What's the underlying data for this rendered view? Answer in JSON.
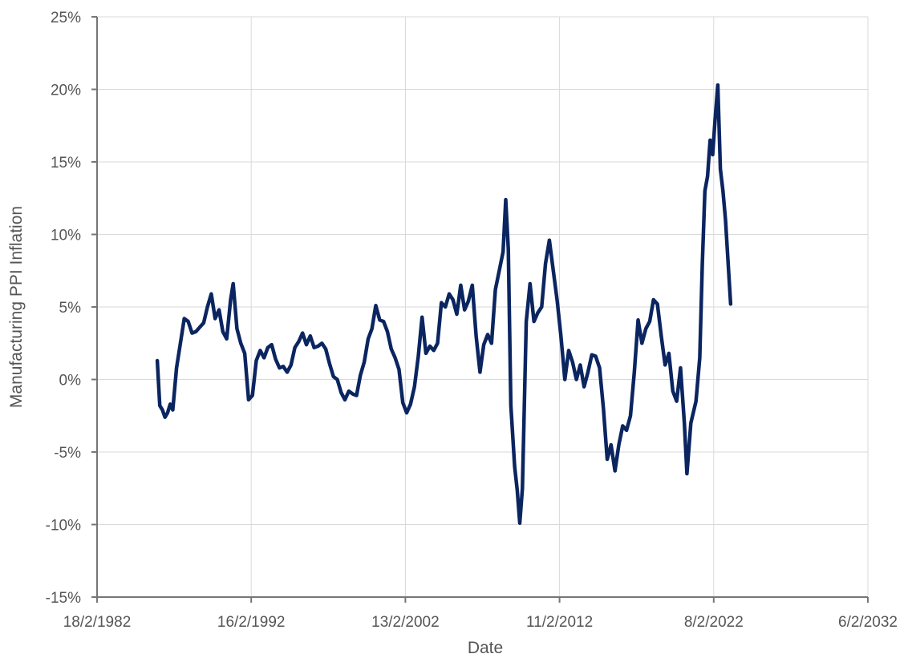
{
  "chart_data": {
    "type": "line",
    "title": "",
    "xlabel": "Date",
    "ylabel": "Manufacturing PPI Inflation",
    "x_ticks": [
      "18/2/1982",
      "16/2/1992",
      "13/2/2002",
      "11/2/2012",
      "8/2/2022",
      "6/2/2032"
    ],
    "y_ticks": [
      "-15%",
      "-10%",
      "-5%",
      "0%",
      "5%",
      "10%",
      "15%",
      "20%",
      "25%"
    ],
    "xlim": [
      "1982-02-18",
      "2032-02-06"
    ],
    "ylim": [
      -15,
      25
    ],
    "grid": true,
    "legend": "none",
    "line_color": "#0b2560",
    "grid_color": "#d9d9d9",
    "axis_color": "#767676",
    "series": [
      {
        "points": [
          [
            "1986-01",
            1.3
          ],
          [
            "1986-03",
            -1.8
          ],
          [
            "1986-05",
            -2.1
          ],
          [
            "1986-07",
            -2.6
          ],
          [
            "1986-09",
            -2.3
          ],
          [
            "1986-11",
            -1.7
          ],
          [
            "1987-01",
            -2.1
          ],
          [
            "1987-04",
            0.8
          ],
          [
            "1987-07",
            2.5
          ],
          [
            "1987-10",
            4.2
          ],
          [
            "1988-01",
            4.0
          ],
          [
            "1988-04",
            3.2
          ],
          [
            "1988-07",
            3.3
          ],
          [
            "1988-10",
            3.6
          ],
          [
            "1989-01",
            3.9
          ],
          [
            "1989-04",
            5.0
          ],
          [
            "1989-07",
            5.9
          ],
          [
            "1989-10",
            4.2
          ],
          [
            "1990-01",
            4.8
          ],
          [
            "1990-04",
            3.3
          ],
          [
            "1990-07",
            2.8
          ],
          [
            "1990-10",
            5.5
          ],
          [
            "1990-12",
            6.6
          ],
          [
            "1991-03",
            3.5
          ],
          [
            "1991-06",
            2.5
          ],
          [
            "1991-09",
            1.8
          ],
          [
            "1991-12",
            -1.4
          ],
          [
            "1992-03",
            -1.1
          ],
          [
            "1992-06",
            1.3
          ],
          [
            "1992-09",
            2.0
          ],
          [
            "1992-12",
            1.5
          ],
          [
            "1993-03",
            2.2
          ],
          [
            "1993-06",
            2.4
          ],
          [
            "1993-09",
            1.4
          ],
          [
            "1993-12",
            0.8
          ],
          [
            "1994-03",
            0.9
          ],
          [
            "1994-06",
            0.5
          ],
          [
            "1994-09",
            1.0
          ],
          [
            "1994-12",
            2.2
          ],
          [
            "1995-03",
            2.6
          ],
          [
            "1995-06",
            3.2
          ],
          [
            "1995-09",
            2.4
          ],
          [
            "1995-12",
            3.0
          ],
          [
            "1996-03",
            2.2
          ],
          [
            "1996-06",
            2.3
          ],
          [
            "1996-09",
            2.5
          ],
          [
            "1996-12",
            2.1
          ],
          [
            "1997-03",
            1.1
          ],
          [
            "1997-06",
            0.2
          ],
          [
            "1997-09",
            0.0
          ],
          [
            "1997-12",
            -0.9
          ],
          [
            "1998-03",
            -1.4
          ],
          [
            "1998-06",
            -0.8
          ],
          [
            "1998-09",
            -1.0
          ],
          [
            "1998-12",
            -1.1
          ],
          [
            "1999-03",
            0.3
          ],
          [
            "1999-06",
            1.2
          ],
          [
            "1999-09",
            2.8
          ],
          [
            "1999-12",
            3.5
          ],
          [
            "2000-03",
            5.1
          ],
          [
            "2000-06",
            4.1
          ],
          [
            "2000-09",
            4.0
          ],
          [
            "2000-12",
            3.3
          ],
          [
            "2001-03",
            2.1
          ],
          [
            "2001-06",
            1.5
          ],
          [
            "2001-09",
            0.7
          ],
          [
            "2001-12",
            -1.6
          ],
          [
            "2002-03",
            -2.3
          ],
          [
            "2002-06",
            -1.7
          ],
          [
            "2002-09",
            -0.5
          ],
          [
            "2002-12",
            1.6
          ],
          [
            "2003-03",
            4.3
          ],
          [
            "2003-06",
            1.8
          ],
          [
            "2003-09",
            2.3
          ],
          [
            "2003-12",
            2.0
          ],
          [
            "2004-03",
            2.5
          ],
          [
            "2004-06",
            5.3
          ],
          [
            "2004-09",
            5.0
          ],
          [
            "2004-12",
            5.9
          ],
          [
            "2005-03",
            5.5
          ],
          [
            "2005-06",
            4.5
          ],
          [
            "2005-09",
            6.5
          ],
          [
            "2005-12",
            4.8
          ],
          [
            "2006-03",
            5.4
          ],
          [
            "2006-06",
            6.5
          ],
          [
            "2006-09",
            3.0
          ],
          [
            "2006-12",
            0.5
          ],
          [
            "2007-03",
            2.4
          ],
          [
            "2007-06",
            3.1
          ],
          [
            "2007-09",
            2.5
          ],
          [
            "2007-12",
            6.2
          ],
          [
            "2008-03",
            7.5
          ],
          [
            "2008-06",
            8.8
          ],
          [
            "2008-08",
            12.4
          ],
          [
            "2008-10",
            9.0
          ],
          [
            "2008-12",
            -1.8
          ],
          [
            "2009-03",
            -6.0
          ],
          [
            "2009-05",
            -7.6
          ],
          [
            "2009-07",
            -9.9
          ],
          [
            "2009-09",
            -7.5
          ],
          [
            "2009-12",
            4.0
          ],
          [
            "2010-03",
            6.6
          ],
          [
            "2010-06",
            4.0
          ],
          [
            "2010-09",
            4.6
          ],
          [
            "2010-12",
            5.0
          ],
          [
            "2011-03",
            8.0
          ],
          [
            "2011-06",
            9.6
          ],
          [
            "2011-09",
            7.5
          ],
          [
            "2011-12",
            5.5
          ],
          [
            "2012-03",
            3.0
          ],
          [
            "2012-06",
            0.0
          ],
          [
            "2012-09",
            2.0
          ],
          [
            "2012-12",
            1.2
          ],
          [
            "2013-03",
            0.0
          ],
          [
            "2013-06",
            1.0
          ],
          [
            "2013-09",
            -0.5
          ],
          [
            "2013-12",
            0.5
          ],
          [
            "2014-03",
            1.7
          ],
          [
            "2014-06",
            1.6
          ],
          [
            "2014-09",
            0.8
          ],
          [
            "2014-12",
            -2.0
          ],
          [
            "2015-03",
            -5.5
          ],
          [
            "2015-06",
            -4.5
          ],
          [
            "2015-09",
            -6.3
          ],
          [
            "2015-12",
            -4.5
          ],
          [
            "2016-03",
            -3.2
          ],
          [
            "2016-06",
            -3.5
          ],
          [
            "2016-09",
            -2.5
          ],
          [
            "2016-12",
            0.5
          ],
          [
            "2017-03",
            4.1
          ],
          [
            "2017-06",
            2.5
          ],
          [
            "2017-09",
            3.5
          ],
          [
            "2017-12",
            4.0
          ],
          [
            "2018-03",
            5.5
          ],
          [
            "2018-06",
            5.2
          ],
          [
            "2018-09",
            3.0
          ],
          [
            "2018-12",
            1.0
          ],
          [
            "2019-03",
            1.8
          ],
          [
            "2019-06",
            -0.8
          ],
          [
            "2019-09",
            -1.5
          ],
          [
            "2019-12",
            0.8
          ],
          [
            "2020-03",
            -3.0
          ],
          [
            "2020-05",
            -6.5
          ],
          [
            "2020-08",
            -3.0
          ],
          [
            "2020-12",
            -1.5
          ],
          [
            "2021-03",
            1.5
          ],
          [
            "2021-05",
            8.0
          ],
          [
            "2021-07",
            13.0
          ],
          [
            "2021-09",
            14.0
          ],
          [
            "2021-11",
            16.5
          ],
          [
            "2022-01",
            15.5
          ],
          [
            "2022-03",
            18.0
          ],
          [
            "2022-05",
            20.3
          ],
          [
            "2022-07",
            14.5
          ],
          [
            "2022-09",
            13.0
          ],
          [
            "2022-11",
            11.0
          ],
          [
            "2023-01",
            8.0
          ],
          [
            "2023-03",
            5.2
          ]
        ]
      }
    ]
  }
}
